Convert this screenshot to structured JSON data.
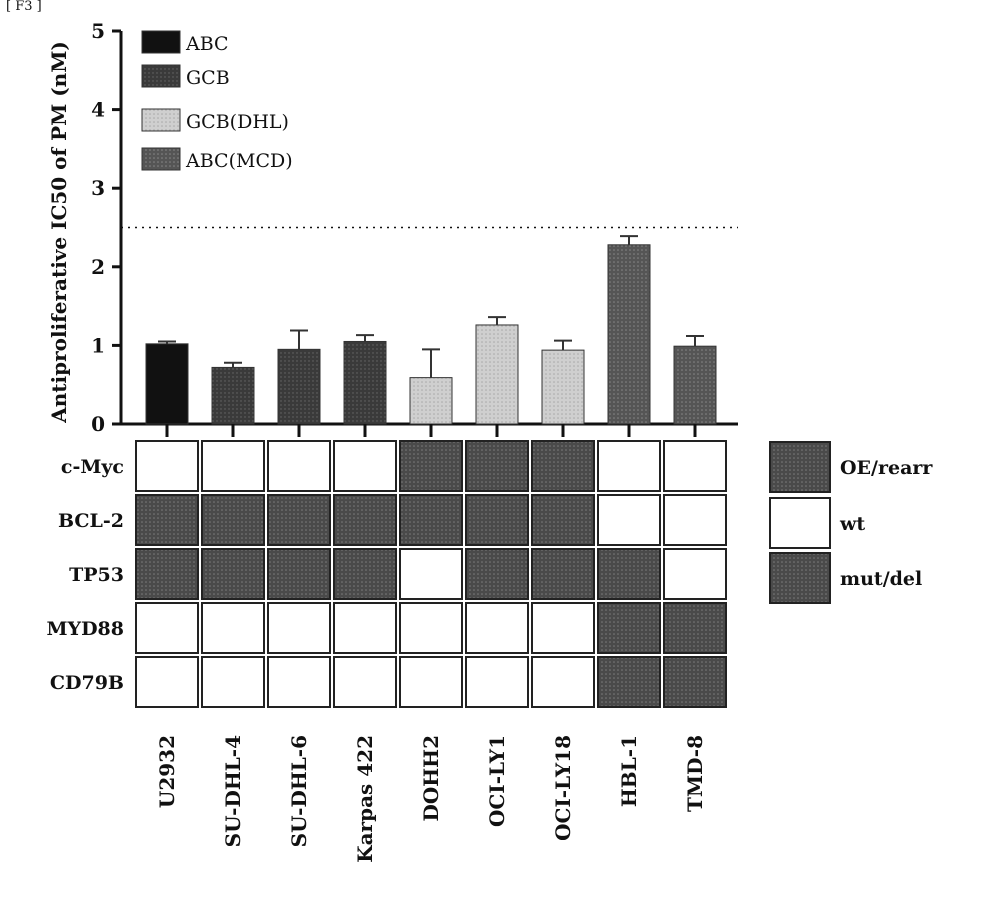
{
  "header_fragment": "[ F3 ]",
  "chart_data": {
    "type": "bar",
    "ylabel": "Antiproliferative IC50 of PM (nM)",
    "ylim": [
      0,
      5
    ],
    "yticks": [
      0,
      1,
      2,
      3,
      4,
      5
    ],
    "threshold": 2.5,
    "legend_position": "top-left",
    "categories": [
      "U2932",
      "SU-DHL-4",
      "SU-DHL-6",
      "Karpas 422",
      "DOHH2",
      "OCI-LY1",
      "OCI-LY18",
      "HBL-1",
      "TMD-8"
    ],
    "values": [
      1.02,
      0.72,
      0.95,
      1.05,
      0.59,
      1.26,
      0.94,
      2.28,
      0.99
    ],
    "errors": [
      0.03,
      0.06,
      0.24,
      0.08,
      0.36,
      0.1,
      0.12,
      0.11,
      0.13
    ],
    "groups": [
      "ABC",
      "GCB",
      "GCB",
      "GCB",
      "GCB(DHL)",
      "GCB(DHL)",
      "GCB(DHL)",
      "ABC(MCD)",
      "ABC(MCD)"
    ],
    "legend": [
      {
        "name": "ABC",
        "color": "#111111"
      },
      {
        "name": "GCB",
        "color": "#3a3a3a"
      },
      {
        "name": "GCB(DHL)",
        "color": "#c8c8c8"
      },
      {
        "name": "ABC(MCD)",
        "color": "#555555"
      }
    ]
  },
  "status_grid": {
    "rows": [
      "c-Myc",
      "BCL-2",
      "TP53",
      "MYD88",
      "CD79B"
    ],
    "values": [
      [
        "wt",
        "wt",
        "wt",
        "wt",
        "OE/rearr",
        "OE/rearr",
        "OE/rearr",
        "wt",
        "wt"
      ],
      [
        "OE/rearr",
        "OE/rearr",
        "OE/rearr",
        "OE/rearr",
        "OE/rearr",
        "OE/rearr",
        "OE/rearr",
        "wt",
        "wt"
      ],
      [
        "mut/del",
        "mut/del",
        "mut/del",
        "mut/del",
        "wt",
        "mut/del",
        "mut/del",
        "mut/del",
        "wt"
      ],
      [
        "wt",
        "wt",
        "wt",
        "wt",
        "wt",
        "wt",
        "wt",
        "mut/del",
        "mut/del"
      ],
      [
        "wt",
        "wt",
        "wt",
        "wt",
        "wt",
        "wt",
        "wt",
        "mut/del",
        "mut/del"
      ]
    ],
    "legend": [
      {
        "name": "OE/rearr",
        "color": "#5a5a5a"
      },
      {
        "name": "wt",
        "color": "#ffffff"
      },
      {
        "name": "mut/del",
        "color": "#444444"
      }
    ]
  }
}
